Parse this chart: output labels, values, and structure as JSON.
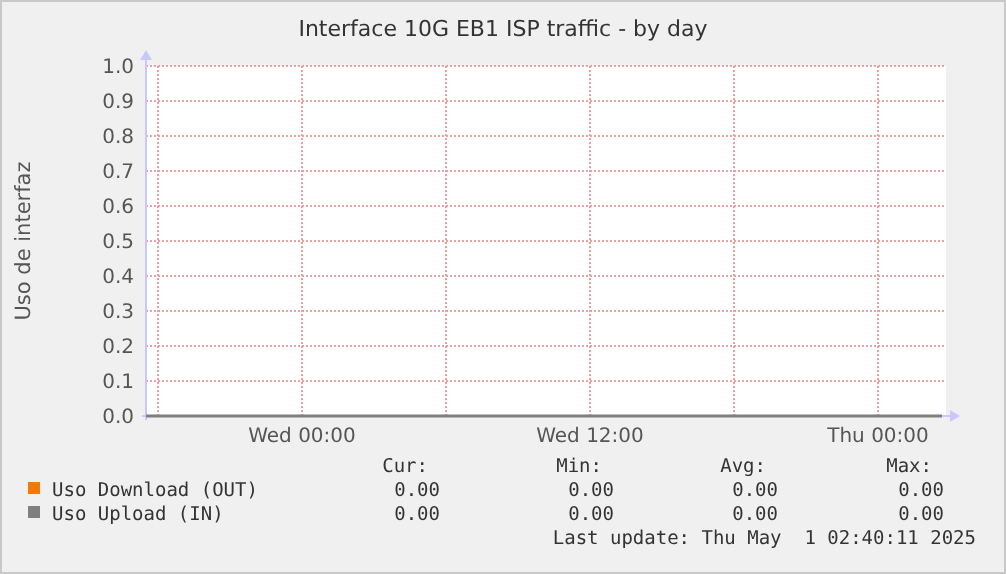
{
  "chart_data": {
    "type": "line",
    "title": "Interface 10G EB1 ISP traffic - by day",
    "ylabel": "Uso de interfaz",
    "x": [
      "2025-04-29T17:30",
      "2025-05-01T02:40"
    ],
    "series": [
      {
        "name": "Uso Download (OUT)",
        "color": "#f57900",
        "values": [
          null,
          null
        ]
      },
      {
        "name": "Uso Upload (IN)",
        "color": "#7f7f7f",
        "values": [
          0,
          0
        ]
      }
    ],
    "xlim": [
      "2025-04-29T17:30",
      "2025-05-01T02:50"
    ],
    "xticks": [
      {
        "value": "2025-04-29T18:00",
        "label": null
      },
      {
        "value": "2025-04-30T00:00",
        "label": "Wed 00:00"
      },
      {
        "value": "2025-04-30T06:00",
        "label": null
      },
      {
        "value": "2025-04-30T12:00",
        "label": "Wed 12:00"
      },
      {
        "value": "2025-04-30T18:00",
        "label": null
      },
      {
        "value": "2025-05-01T00:00",
        "label": "Thu 00:00"
      }
    ],
    "ylim": [
      0,
      1
    ],
    "yticks": [
      {
        "value": 0,
        "label": "0.0"
      },
      {
        "value": 0.1,
        "label": "0.1"
      },
      {
        "value": 0.2,
        "label": "0.2"
      },
      {
        "value": 0.3,
        "label": "0.3"
      },
      {
        "value": 0.4,
        "label": "0.4"
      },
      {
        "value": 0.5,
        "label": "0.5"
      },
      {
        "value": 0.6,
        "label": "0.6"
      },
      {
        "value": 0.7,
        "label": "0.7"
      },
      {
        "value": 0.8,
        "label": "0.8"
      },
      {
        "value": 0.9,
        "label": "0.9"
      },
      {
        "value": 1,
        "label": "1.0"
      }
    ],
    "grid": true,
    "legend": "bottom",
    "marker": "none",
    "line_style": "solid",
    "annotations": [
      "Cur:",
      "Min:",
      "Avg:",
      "Max:",
      "0.00",
      "0.00",
      "0.00",
      "0.00",
      "0.00",
      "0.00",
      "0.00",
      "0.00",
      "Last update: Thu May  1 02:40:11 2025"
    ]
  }
}
